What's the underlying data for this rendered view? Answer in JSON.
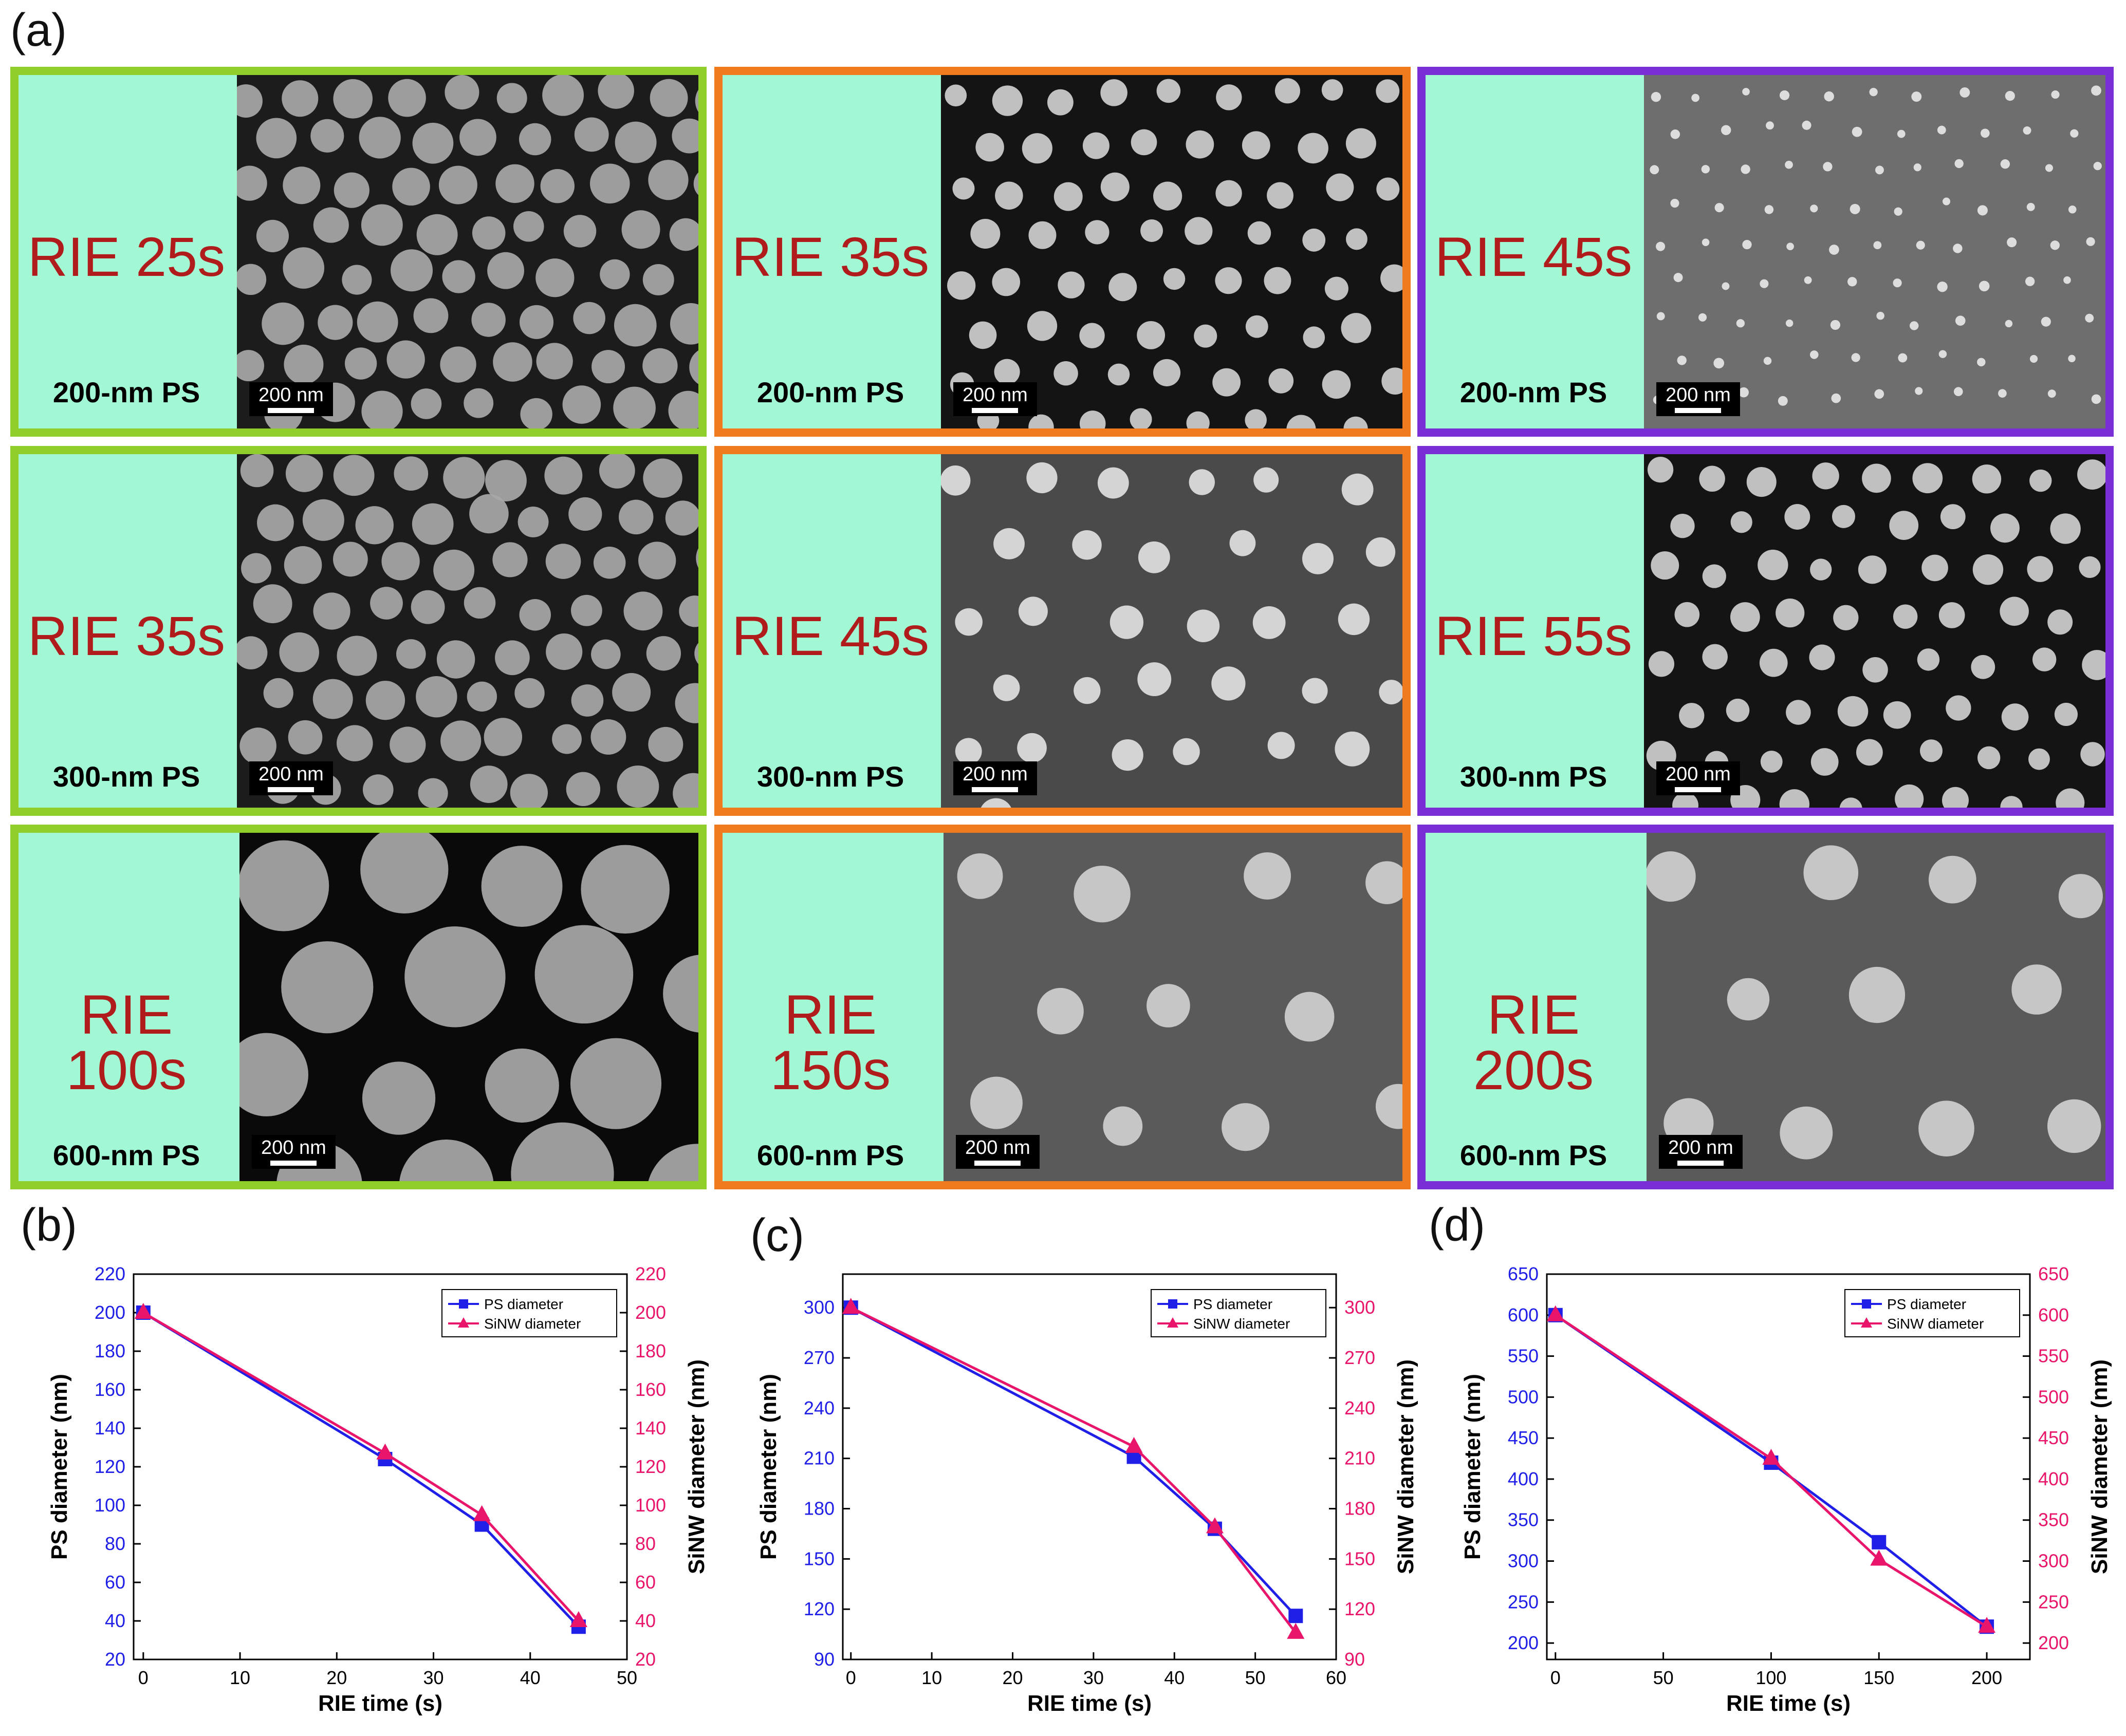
{
  "labels": {
    "a": "(a)",
    "b": "(b)",
    "c": "(c)",
    "d": "(d)"
  },
  "scale_bar_text": "200 nm",
  "tiles": [
    {
      "rie": "RIE 25s",
      "ps": "200-nm PS",
      "tone": "dark-dense"
    },
    {
      "rie": "RIE 35s",
      "ps": "200-nm PS",
      "tone": "dark-sparse"
    },
    {
      "rie": "RIE 45s",
      "ps": "200-nm PS",
      "tone": "gray-dots"
    },
    {
      "rie": "RIE 35s",
      "ps": "300-nm PS",
      "tone": "dark-dense"
    },
    {
      "rie": "RIE 45s",
      "ps": "300-nm PS",
      "tone": "gray-medium"
    },
    {
      "rie": "RIE 55s",
      "ps": "300-nm PS",
      "tone": "dark-sparse"
    },
    {
      "rie": "RIE 100s",
      "ps": "600-nm PS",
      "tone": "black-large"
    },
    {
      "rie": "RIE 150s",
      "ps": "600-nm PS",
      "tone": "gray-large"
    },
    {
      "rie": "RIE 200s",
      "ps": "600-nm PS",
      "tone": "gray-large"
    }
  ],
  "colors": {
    "ps": "#1f1fe8",
    "sinw": "#e8156a",
    "frame_green": "#8fce2b",
    "frame_orange": "#f07a1e",
    "frame_purple": "#7a2ed6"
  },
  "chart_data": [
    {
      "type": "line",
      "panel": "(b)",
      "xlabel": "RIE time (s)",
      "ylabel": "PS diameter (nm)",
      "y2label": "SiNW diameter (nm)",
      "xlim": [
        -1,
        50
      ],
      "xticks": [
        0,
        10,
        20,
        30,
        40,
        50
      ],
      "ylim": [
        20,
        220
      ],
      "yticks": [
        20,
        40,
        60,
        80,
        100,
        120,
        140,
        160,
        180,
        200,
        220
      ],
      "series": [
        {
          "name": "PS diameter",
          "marker": "square",
          "x": [
            0,
            25,
            35,
            45
          ],
          "y": [
            200,
            124,
            90,
            37
          ]
        },
        {
          "name": "SiNW diameter",
          "marker": "triangle",
          "x": [
            0,
            25,
            35,
            45
          ],
          "y": [
            200,
            127,
            95,
            40
          ]
        }
      ]
    },
    {
      "type": "line",
      "panel": "(c)",
      "xlabel": "RIE time (s)",
      "ylabel": "PS diameter (nm)",
      "y2label": "SiNW diameter (nm)",
      "xlim": [
        -1,
        60
      ],
      "xticks": [
        0,
        10,
        20,
        30,
        40,
        50,
        60
      ],
      "ylim": [
        90,
        320
      ],
      "yticks": [
        90,
        120,
        150,
        180,
        210,
        240,
        270,
        300
      ],
      "series": [
        {
          "name": "PS diameter",
          "marker": "square",
          "x": [
            0,
            35,
            45,
            55
          ],
          "y": [
            300,
            211,
            168,
            116
          ]
        },
        {
          "name": "SiNW diameter",
          "marker": "triangle",
          "x": [
            0,
            35,
            45,
            55
          ],
          "y": [
            300,
            217,
            169,
            106
          ]
        }
      ]
    },
    {
      "type": "line",
      "panel": "(d)",
      "xlabel": "RIE time (s)",
      "ylabel": "PS diameter (nm)",
      "y2label": "SiNW diameter (nm)",
      "xlim": [
        -4,
        220
      ],
      "xticks": [
        0,
        50,
        100,
        150,
        200
      ],
      "ylim": [
        180,
        650
      ],
      "yticks": [
        200,
        250,
        300,
        350,
        400,
        450,
        500,
        550,
        600,
        650
      ],
      "series": [
        {
          "name": "PS diameter",
          "marker": "square",
          "x": [
            0,
            100,
            150,
            200
          ],
          "y": [
            600,
            420,
            323,
            220
          ]
        },
        {
          "name": "SiNW diameter",
          "marker": "triangle",
          "x": [
            0,
            100,
            150,
            200
          ],
          "y": [
            600,
            425,
            302,
            220
          ]
        }
      ]
    }
  ]
}
